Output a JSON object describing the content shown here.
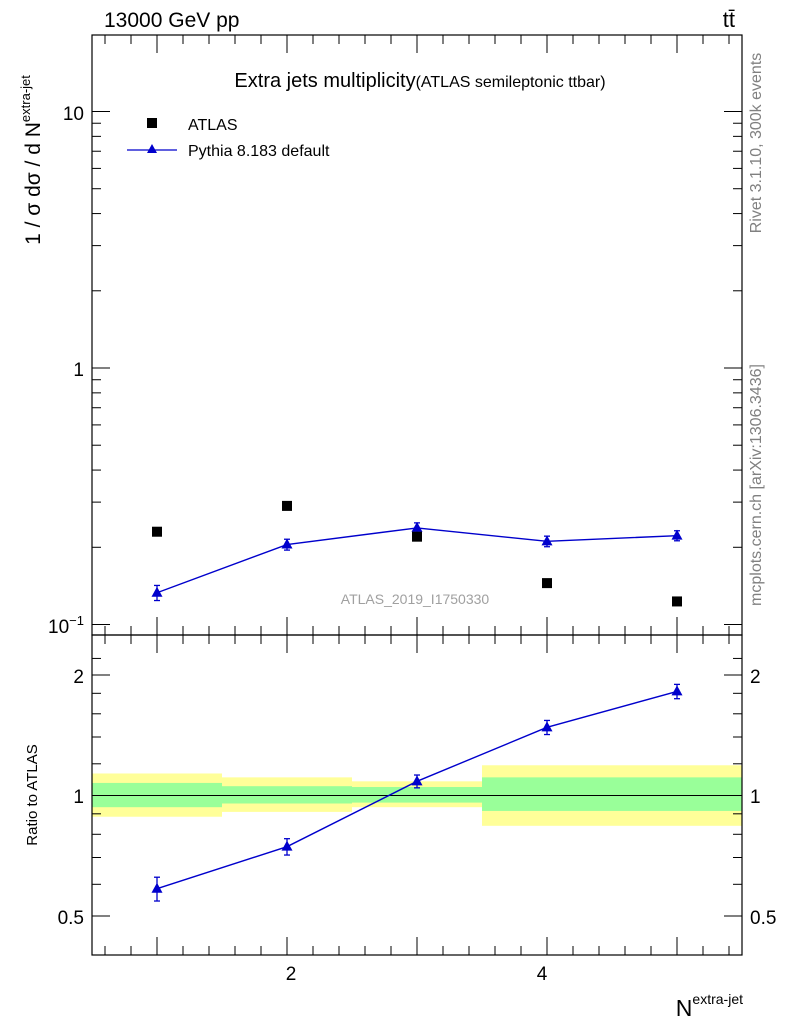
{
  "header": {
    "energy_label": "13000 GeV pp",
    "process_label": "tt̄",
    "side_label_top": "Rivet 3.1.10,  300k events",
    "side_label_bottom": "mcplots.cern.ch [arXiv:1306.3436]"
  },
  "chart_data": [
    {
      "type": "scatter",
      "panel": "main",
      "title": "Extra jets multiplicity",
      "subtitle": "(ATLAS semileptonic ttbar)",
      "ylabel_main": "1 / σ dσ / d N",
      "ylabel_sup": "extra-jet",
      "watermark": "ATLAS_2019_I1750330",
      "yscale": "log",
      "ylim": [
        0.1,
        20
      ],
      "xlim": [
        0.5,
        5.5
      ],
      "ytick_labels": [
        "10",
        "1",
        "10"
      ],
      "ytick_sup": "−1",
      "legend_position": "top-left",
      "series": [
        {
          "name": "ATLAS",
          "color": "#000000",
          "marker": "square",
          "x": [
            1,
            2,
            3,
            4,
            5
          ],
          "y": [
            0.23,
            0.29,
            0.22,
            0.145,
            0.123
          ]
        },
        {
          "name": "Pythia 8.183 default",
          "color": "#0000cc",
          "marker": "triangle",
          "line": true,
          "x": [
            1,
            2,
            3,
            4,
            5
          ],
          "y": [
            0.133,
            0.205,
            0.238,
            0.211,
            0.222
          ],
          "yerr": [
            0.009,
            0.01,
            0.011,
            0.01,
            0.01
          ]
        }
      ]
    },
    {
      "type": "line",
      "panel": "ratio",
      "ylabel": "Ratio to ATLAS",
      "xlabel_main": "N",
      "xlabel_sup": "extra-jet",
      "ylim": [
        0.4,
        2.4
      ],
      "xlim": [
        0.5,
        5.5
      ],
      "ytick_labels": [
        "0.5",
        "1",
        "2"
      ],
      "xtick_labels": [
        "2",
        "4"
      ],
      "reference_line": 1.0,
      "bands": [
        {
          "x_range": [
            0.5,
            1.5
          ],
          "green": [
            0.935,
            1.075
          ],
          "yellow": [
            0.885,
            1.135
          ]
        },
        {
          "x_range": [
            1.5,
            2.5
          ],
          "green": [
            0.955,
            1.055
          ],
          "yellow": [
            0.91,
            1.11
          ]
        },
        {
          "x_range": [
            2.5,
            3.5
          ],
          "green": [
            0.96,
            1.05
          ],
          "yellow": [
            0.935,
            1.085
          ]
        },
        {
          "x_range": [
            3.5,
            4.5
          ],
          "green": [
            0.915,
            1.11
          ],
          "yellow": [
            0.84,
            1.19
          ]
        },
        {
          "x_range": [
            4.5,
            5.5
          ],
          "green": [
            0.915,
            1.11
          ],
          "yellow": [
            0.84,
            1.19
          ]
        }
      ],
      "band_colors": {
        "green": "#99ff99",
        "yellow": "#ffff99"
      },
      "series": [
        {
          "name": "Pythia 8.183 default",
          "color": "#0000cc",
          "marker": "triangle",
          "x": [
            1,
            2,
            3,
            4,
            5
          ],
          "y": [
            0.585,
            0.745,
            1.085,
            1.48,
            1.82
          ],
          "yerr": [
            0.04,
            0.035,
            0.04,
            0.06,
            0.075
          ]
        }
      ]
    }
  ]
}
